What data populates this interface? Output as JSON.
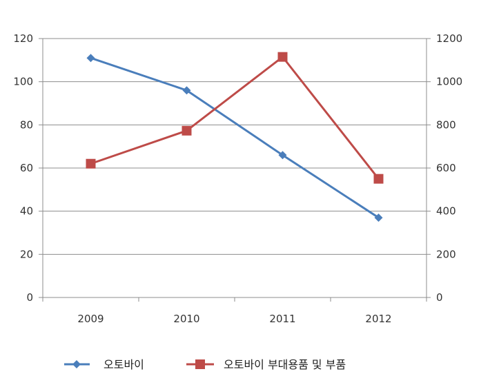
{
  "chart_data": {
    "type": "line",
    "categories": [
      "2009",
      "2010",
      "2011",
      "2012"
    ],
    "y_left": {
      "range": [
        0,
        120
      ],
      "ticks": [
        0,
        20,
        40,
        60,
        80,
        100,
        120
      ]
    },
    "y_right": {
      "range": [
        0,
        1200
      ],
      "ticks": [
        0,
        200,
        400,
        600,
        800,
        1000,
        1200
      ]
    },
    "grid": true,
    "legend_position": "bottom",
    "series": [
      {
        "name": "오토바이",
        "axis": "left",
        "marker": "diamond",
        "color": "#4a7ebb",
        "values": [
          111,
          96,
          66,
          37
        ]
      },
      {
        "name": "오토바이 부대용품 및 부품",
        "axis": "right",
        "marker": "square",
        "color": "#be4b48",
        "values": [
          620,
          773,
          1115,
          550
        ]
      }
    ]
  }
}
